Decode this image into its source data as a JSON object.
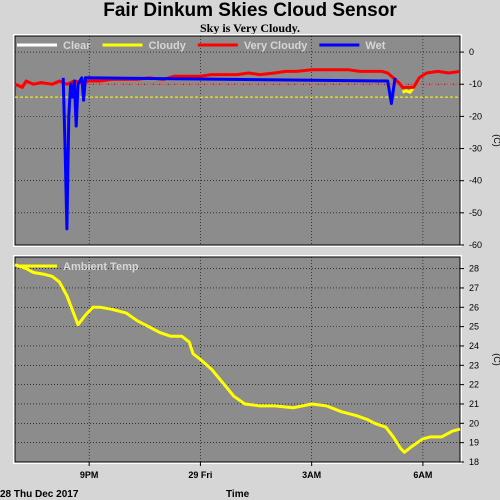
{
  "chart_data": [
    {
      "type": "line",
      "title": "Fair Dinkum Skies Cloud Sensor",
      "subtitle": "Sky is Very Cloudy.",
      "ylabel": "(C)",
      "ylim": [
        -60,
        5
      ],
      "yticks": [
        0,
        -10,
        -20,
        -30,
        -40,
        -50,
        -60
      ],
      "grid": true,
      "legend_position": "top-left",
      "thresholds": [
        {
          "value": -10,
          "color": "#ff4444"
        },
        {
          "value": -14,
          "color": "#ffff00"
        }
      ],
      "series": [
        {
          "name": "Clear",
          "color": "#ffffff",
          "points": []
        },
        {
          "name": "Cloudy",
          "color": "#ffff00",
          "points": [
            [
              10.45,
              -12.5
            ],
            [
              10.55,
              -12
            ],
            [
              10.65,
              -12.5
            ],
            [
              10.75,
              -11
            ]
          ]
        },
        {
          "name": "Very Cloudy",
          "color": "#ff0000",
          "points": [
            [
              0.0,
              -10
            ],
            [
              0.2,
              -11
            ],
            [
              0.3,
              -9
            ],
            [
              0.5,
              -10
            ],
            [
              0.7,
              -9.5
            ],
            [
              1.0,
              -10
            ],
            [
              1.2,
              -9
            ],
            [
              1.4,
              -10
            ],
            [
              1.6,
              -9
            ],
            [
              1.8,
              -9.5
            ],
            [
              2.0,
              -9
            ],
            [
              2.3,
              -9
            ],
            [
              2.6,
              -8.5
            ],
            [
              3.0,
              -8.5
            ],
            [
              3.3,
              -8.5
            ],
            [
              3.6,
              -8
            ],
            [
              4.0,
              -8.5
            ],
            [
              4.3,
              -7.5
            ],
            [
              4.6,
              -7.5
            ],
            [
              5.0,
              -7.5
            ],
            [
              5.3,
              -7
            ],
            [
              5.6,
              -7
            ],
            [
              6.0,
              -7
            ],
            [
              6.3,
              -6.5
            ],
            [
              6.6,
              -7
            ],
            [
              7.0,
              -6.5
            ],
            [
              7.3,
              -6
            ],
            [
              7.6,
              -6
            ],
            [
              8.0,
              -5.5
            ],
            [
              8.3,
              -5.5
            ],
            [
              8.6,
              -5.5
            ],
            [
              9.0,
              -5.5
            ],
            [
              9.3,
              -6
            ],
            [
              9.6,
              -6
            ],
            [
              9.9,
              -6
            ],
            [
              10.05,
              -6.5
            ],
            [
              10.35,
              -9.5
            ],
            [
              10.45,
              -11
            ],
            [
              10.75,
              -11
            ],
            [
              10.9,
              -8
            ],
            [
              11.1,
              -6.5
            ],
            [
              11.4,
              -6
            ],
            [
              11.7,
              -6.5
            ],
            [
              12.0,
              -6
            ]
          ]
        },
        {
          "name": "Wet",
          "color": "#0000ff",
          "points": [
            [
              1.3,
              -8
            ],
            [
              1.35,
              -30
            ],
            [
              1.4,
              -55
            ],
            [
              1.45,
              -20
            ],
            [
              1.5,
              -10
            ],
            [
              1.55,
              -14
            ],
            [
              1.6,
              -9
            ],
            [
              1.65,
              -23
            ],
            [
              1.7,
              -10
            ],
            [
              1.8,
              -8
            ],
            [
              1.85,
              -15
            ],
            [
              1.9,
              -8
            ],
            [
              10.05,
              -9
            ],
            [
              10.15,
              -16
            ],
            [
              10.25,
              -8
            ]
          ]
        }
      ]
    },
    {
      "type": "line",
      "ylabel": "(C)",
      "ylim": [
        18,
        28.6
      ],
      "yticks": [
        18,
        19,
        20,
        21,
        22,
        23,
        24,
        25,
        26,
        27,
        28
      ],
      "grid": true,
      "legend_position": "top-left",
      "xlabel": "Time",
      "x_ticks": [
        {
          "x": 2,
          "label": "9PM"
        },
        {
          "x": 5,
          "label": "29 Fri"
        },
        {
          "x": 8,
          "label": "3AM"
        },
        {
          "x": 11,
          "label": "6AM"
        }
      ],
      "series": [
        {
          "name": "Ambient Temp",
          "color": "#ffff00",
          "points": [
            [
              0,
              28.2
            ],
            [
              0.3,
              28.0
            ],
            [
              0.5,
              27.8
            ],
            [
              0.8,
              27.7
            ],
            [
              1.0,
              27.6
            ],
            [
              1.2,
              27.3
            ],
            [
              1.4,
              26.6
            ],
            [
              1.6,
              25.6
            ],
            [
              1.7,
              25.1
            ],
            [
              1.9,
              25.6
            ],
            [
              2.1,
              26.0
            ],
            [
              2.3,
              26.0
            ],
            [
              2.6,
              25.9
            ],
            [
              3.0,
              25.7
            ],
            [
              3.3,
              25.3
            ],
            [
              3.6,
              25.0
            ],
            [
              3.9,
              24.7
            ],
            [
              4.2,
              24.5
            ],
            [
              4.5,
              24.5
            ],
            [
              4.7,
              24.2
            ],
            [
              4.8,
              23.6
            ],
            [
              5.0,
              23.3
            ],
            [
              5.3,
              22.8
            ],
            [
              5.6,
              22.1
            ],
            [
              5.9,
              21.4
            ],
            [
              6.2,
              21.0
            ],
            [
              6.6,
              20.9
            ],
            [
              7.0,
              20.9
            ],
            [
              7.5,
              20.8
            ],
            [
              8.0,
              21.0
            ],
            [
              8.4,
              20.9
            ],
            [
              8.8,
              20.6
            ],
            [
              9.2,
              20.4
            ],
            [
              9.5,
              20.2
            ],
            [
              9.7,
              20.0
            ],
            [
              10.0,
              19.8
            ],
            [
              10.2,
              19.3
            ],
            [
              10.4,
              18.7
            ],
            [
              10.5,
              18.5
            ],
            [
              10.7,
              18.8
            ],
            [
              11.0,
              19.2
            ],
            [
              11.2,
              19.3
            ],
            [
              11.5,
              19.3
            ],
            [
              11.8,
              19.6
            ],
            [
              12.0,
              19.7
            ]
          ]
        }
      ]
    }
  ],
  "footer": {
    "date_label": "28 Thu Dec 2017",
    "time_label": "Time"
  }
}
